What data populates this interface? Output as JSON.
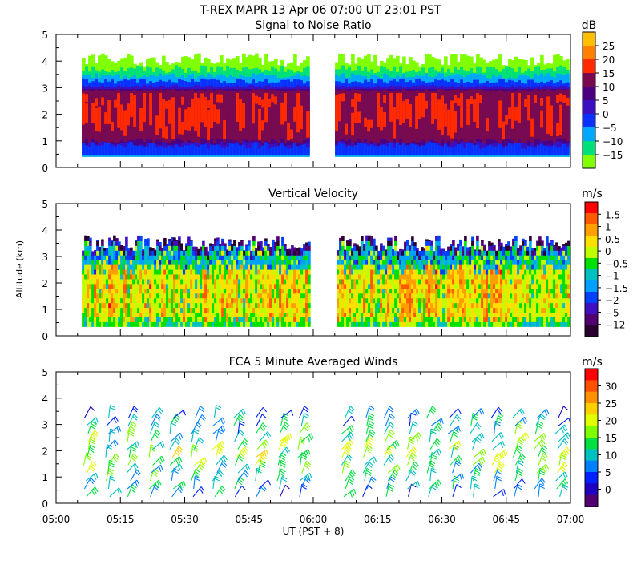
{
  "chart_data": [
    {
      "type": "heatmap",
      "figure_title": "T-REX  MAPR 13 Apr 06  07:00 UT  23:01  PST",
      "title": "Signal to Noise Ratio",
      "ylabel": "",
      "ylim": [
        0,
        5
      ],
      "yticks": [
        "0",
        "1",
        "2",
        "3",
        "4",
        "5"
      ],
      "xlim": [
        "05:00",
        "07:00"
      ],
      "colorbar": {
        "unit": "dB",
        "labels": [
          "25",
          "20",
          "15",
          "10",
          "5",
          "0",
          "−5",
          "−10",
          "−15"
        ],
        "colors": [
          "#ffbf00",
          "#ff7f00",
          "#ff2a00",
          "#7a0a50",
          "#4b0082",
          "#3a10c0",
          "#0a30ff",
          "#00a8ff",
          "#00e07a",
          "#7fff00"
        ]
      },
      "data_gap": [
        "05:59",
        "06:05"
      ]
    },
    {
      "type": "heatmap",
      "title": "Vertical Velocity",
      "ylabel": "Altitude (km)",
      "ylim": [
        0,
        5
      ],
      "yticks": [
        "0",
        "1",
        "2",
        "3",
        "4",
        "5"
      ],
      "xlim": [
        "05:00",
        "07:00"
      ],
      "colorbar": {
        "unit": "m/s",
        "labels": [
          "1.5",
          "1",
          "0.5",
          "0",
          "−0.5",
          "−1",
          "−1.5",
          "−2",
          "−5",
          "−12"
        ],
        "colors": [
          "#ff0000",
          "#ff5a00",
          "#ff9f00",
          "#ffe000",
          "#c0ff00",
          "#00e000",
          "#00c0c0",
          "#00a0ff",
          "#0040ff",
          "#4010c0",
          "#500070",
          "#2a0030"
        ]
      },
      "data_gap": [
        "05:59",
        "06:05"
      ]
    },
    {
      "type": "scatter",
      "title": "FCA 5 Minute Averaged Winds",
      "ylabel": "",
      "ylim": [
        0,
        5
      ],
      "yticks": [
        "0",
        "1",
        "2",
        "3",
        "4",
        "5"
      ],
      "xlabel": "UT  (PST + 8)",
      "xticks": [
        "05:00",
        "05:15",
        "05:30",
        "05:45",
        "06:00",
        "06:15",
        "06:30",
        "06:45",
        "07:00"
      ],
      "colorbar": {
        "unit": "m/s",
        "labels": [
          "30",
          "25",
          "20",
          "15",
          "10",
          "5",
          "0"
        ],
        "colors": [
          "#ff0000",
          "#ff5000",
          "#ff9000",
          "#ffd000",
          "#e0ff00",
          "#80ff00",
          "#00e040",
          "#00c0c0",
          "#0080ff",
          "#0020ff",
          "#2000c0",
          "#500070"
        ]
      },
      "data_gap": [
        "05:59",
        "06:05"
      ]
    }
  ]
}
